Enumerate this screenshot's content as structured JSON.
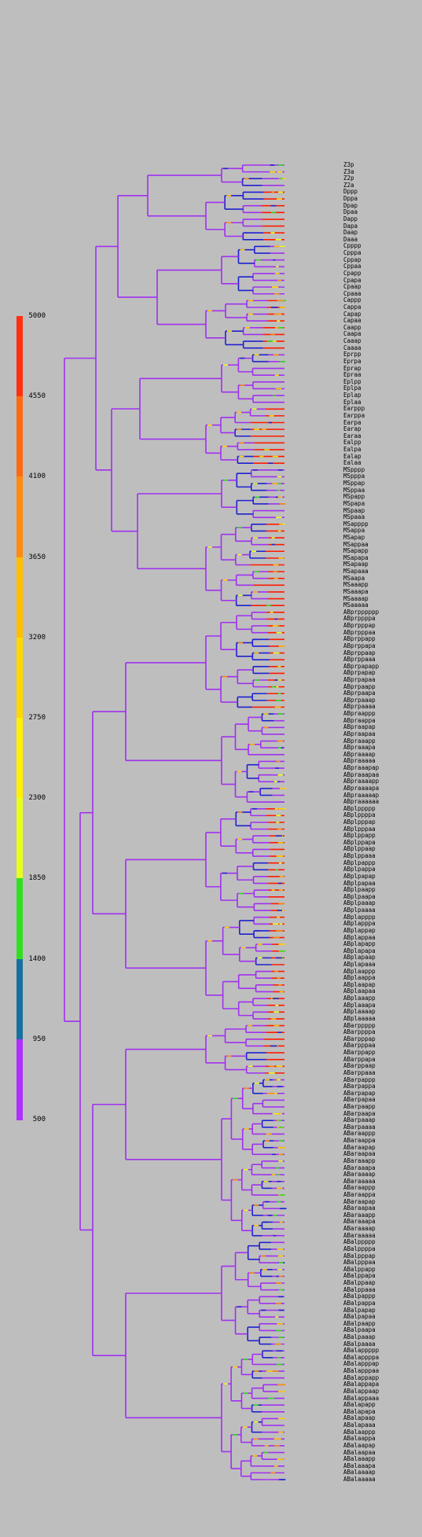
{
  "scale": {
    "ticks": [
      "5000",
      "4550",
      "4100",
      "3650",
      "3200",
      "2750",
      "2300",
      "1850",
      "1400",
      "950",
      "500"
    ],
    "bands": [
      "#ff3010",
      "#ff6a10",
      "#ff8c10",
      "#ffbe00",
      "#ffd800",
      "#fff000",
      "#e8ff20",
      "#30e020",
      "#1870a0",
      "#b030ff"
    ]
  },
  "colors": {
    "background": "#bebebe",
    "tree_default": "#a030f0",
    "tree_blue": "#2020d0",
    "terminal_red": "#ff1a00"
  },
  "groups": [
    {
      "labels": [
        "Z3p",
        "Z3a",
        "Z2p",
        "Z2a"
      ],
      "terminal": "#a030f0"
    },
    {
      "labels": [
        "Dppp",
        "Dppa",
        "Dpap",
        "Dpaa",
        "Dapp",
        "Dapa",
        "Daap",
        "Daaa"
      ],
      "terminal": "#ff1a00"
    },
    {
      "labels": [
        "Cpppp",
        "Cpppa",
        "Cppap",
        "Cppaa",
        "Cpapp",
        "Cpapa",
        "Cpaap",
        "Cpaaa"
      ],
      "terminal": "#a030f0"
    },
    {
      "labels": [
        "Cappp",
        "Cappa",
        "Capap",
        "Capaa",
        "Caapp",
        "Caapa",
        "Caaap",
        "Caaaa"
      ],
      "terminal": "#ff1a00"
    },
    {
      "labels": [
        "Eprpp",
        "Eprpa",
        "Eprap",
        "Epraa",
        "Eplpp",
        "Eplpa",
        "Eplap",
        "Eplaa"
      ],
      "terminal": "#a030f0"
    },
    {
      "labels": [
        "Earppp",
        "Earppa",
        "Earpa",
        "Earap",
        "Earaa",
        "Ealpp",
        "Ealpa",
        "Ealap",
        "Ealaa"
      ],
      "terminal": "#ff1a00"
    },
    {
      "labels": [
        "MSpppp",
        "MSpppa",
        "MSppap",
        "MSppaa",
        "MSpapp",
        "MSpapa",
        "MSpaap",
        "MSpaaa"
      ],
      "terminal": "#a030f0"
    },
    {
      "labels": [
        "MSapppp",
        "MSappa",
        "MSapap",
        "MSappaa",
        "MSapapp",
        "MSapapa",
        "MSapaap",
        "MSapaaa",
        "MSaapa",
        "MSaaapp",
        "MSaaapa",
        "MSaaaap",
        "MSaaaaa"
      ],
      "terminal": "#ff1a00"
    },
    {
      "labels": [
        "ABprpppppp",
        "ABprppppa",
        "ABprpppap",
        "ABprpppaa",
        "ABprppapp",
        "ABprppapa",
        "ABprppaap",
        "ABprppaaa",
        "ABprpapapp",
        "ABprpapap",
        "ABprpapaa",
        "ABprpaapp",
        "ABprpaapa",
        "ABprpaaap",
        "ABprpaaaa"
      ],
      "terminal": "#ff1a00"
    },
    {
      "labels": [
        "ABpraappp",
        "ABpraappa",
        "ABpraapap",
        "ABpraapaa",
        "ABpraaapp",
        "ABpraaapa",
        "ABpraaaap",
        "ABpraaaaa",
        "ABpraaapap",
        "ABpraaapaa",
        "ABpraaaapp",
        "ABpraaaapa",
        "ABpraaaaap",
        "ABpraaaaaa"
      ],
      "terminal": "#a030f0"
    },
    {
      "labels": [
        "ABplppppp",
        "ABplppppa",
        "ABplpppap",
        "ABplpppaa",
        "ABplppapp",
        "ABplppapa",
        "ABplppaap",
        "ABplppaaa",
        "ABplpappp",
        "ABplpappa",
        "ABplpapap",
        "ABplpapaa",
        "ABplpaapp",
        "ABplpaapa",
        "ABplpaaap",
        "ABplpaaaa"
      ],
      "terminal": "#ff1a00"
    },
    {
      "labels": [
        "ABplapppp",
        "ABplapppa",
        "ABplappap",
        "ABplappaa",
        "ABplapapp",
        "ABplapapa",
        "ABplapaap",
        "ABplapaaa",
        "ABplaappp",
        "ABplaappa",
        "ABplaapap",
        "ABplaapaa",
        "ABplaaapp",
        "ABplaaapa",
        "ABplaaaap",
        "ABplaaaaa"
      ],
      "terminal": "#ff1a00"
    },
    {
      "labels": [
        "ABarppppp",
        "ABarppppa",
        "ABarpppap",
        "ABarpppaa",
        "ABarppapp",
        "ABarppapa",
        "ABarppaap",
        "ABarppaaa"
      ],
      "terminal": "#ff1a00"
    },
    {
      "labels": [
        "ABarpappp",
        "ABarpappa",
        "ABarpapap",
        "ABarpapaa",
        "ABarpaapp",
        "ABarpaapa",
        "ABarpaaap",
        "ABarpaaaa",
        "ABaraappp",
        "ABaraappa",
        "ABaraapap",
        "ABaraapaa",
        "ABaraaapp",
        "ABaraaapa",
        "ABaraaaap",
        "ABaraaaaa",
        "ABaraappp",
        "ABaraappa",
        "ABaraapap",
        "ABaraapaa",
        "ABaraaapp",
        "ABaraaapa",
        "ABaraaaap",
        "ABaraaaaa"
      ],
      "terminal": "#a030f0"
    },
    {
      "labels": [
        "ABalppppp",
        "ABalppppa",
        "ABalpppap",
        "ABalpppaa",
        "ABalppapp",
        "ABalppapa",
        "ABalppaap",
        "ABalppaaa",
        "ABalpappp",
        "ABalpappa",
        "ABalpapap",
        "ABalpapaa",
        "ABalpaapp",
        "ABalpaapa",
        "ABalpaaap",
        "ABalpaaaa"
      ],
      "terminal": "#a030f0"
    },
    {
      "labels": [
        "ABalappppp",
        "ABalappppa",
        "ABalapppap",
        "ABalapppaa",
        "ABalappapp",
        "ABalappapa",
        "ABalappaap",
        "ABalappaaa",
        "ABalapapp",
        "ABalapapa",
        "ABalapaap",
        "ABalapaaa",
        "ABalaappp",
        "ABalaappa",
        "ABalaapap",
        "ABalaapaa",
        "ABalaaapp",
        "ABalaaapa",
        "ABalaaaap",
        "ABalaaaaa"
      ],
      "terminal": "#a030f0"
    }
  ]
}
